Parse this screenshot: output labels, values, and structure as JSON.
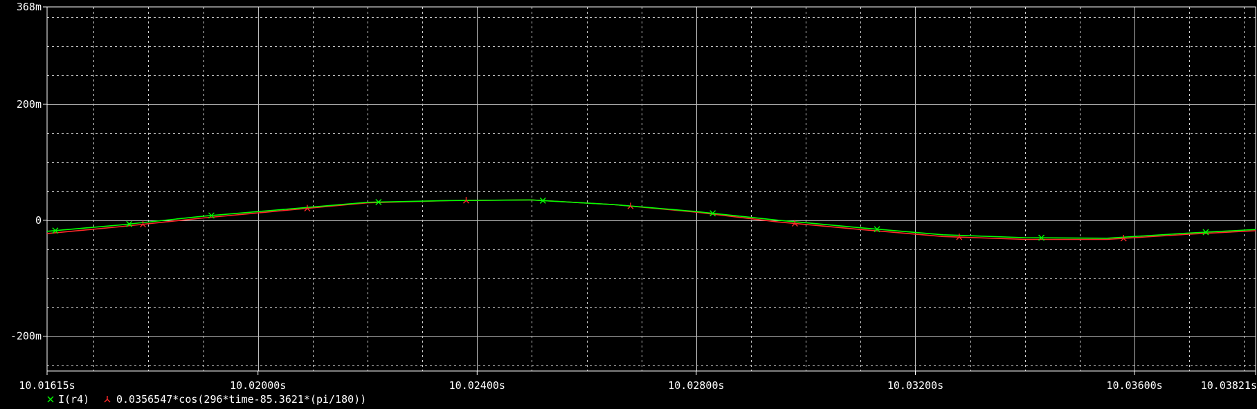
{
  "chart_data": {
    "type": "line",
    "xlabel": "",
    "ylabel": "",
    "xlim": [
      10.01615,
      10.03821
    ],
    "ylim": [
      -0.26,
      0.368
    ],
    "grid": true,
    "background": "#000000",
    "x_ticks": [
      {
        "value": 10.01615,
        "label": "10.01615s"
      },
      {
        "value": 10.02,
        "label": "10.02000s"
      },
      {
        "value": 10.024,
        "label": "10.02400s"
      },
      {
        "value": 10.028,
        "label": "10.02800s"
      },
      {
        "value": 10.032,
        "label": "10.03200s"
      },
      {
        "value": 10.036,
        "label": "10.03600s"
      },
      {
        "value": 10.03821,
        "label": "10.03821s"
      }
    ],
    "y_ticks": [
      {
        "value": 0.368,
        "label": "368m"
      },
      {
        "value": 0.2,
        "label": "200m"
      },
      {
        "value": 0,
        "label": "0"
      },
      {
        "value": -0.2,
        "label": "-200m"
      }
    ],
    "series": [
      {
        "name": "I(r4)",
        "color": "#00ff00",
        "marker": "x",
        "x": [
          10.01615,
          10.0175,
          10.019,
          10.0205,
          10.022,
          10.0235,
          10.025,
          10.0265,
          10.028,
          10.0295,
          10.031,
          10.0325,
          10.034,
          10.0355,
          10.037,
          10.03821
        ],
        "y": [
          -0.019,
          -0.008,
          0.007,
          0.019,
          0.031,
          0.034,
          0.035,
          0.027,
          0.015,
          0.0,
          -0.013,
          -0.025,
          -0.03,
          -0.031,
          -0.022,
          -0.016
        ]
      },
      {
        "name": "0.0356547*cos(296*time-85.3621*(pi/180))",
        "color": "#ff2a2a",
        "marker": "y",
        "x": [
          10.01615,
          10.0175,
          10.019,
          10.0205,
          10.022,
          10.0235,
          10.025,
          10.0265,
          10.028,
          10.0295,
          10.031,
          10.0325,
          10.034,
          10.0355,
          10.037,
          10.03821
        ],
        "y": [
          -0.023,
          -0.011,
          0.004,
          0.017,
          0.03,
          0.034,
          0.035,
          0.027,
          0.014,
          -0.003,
          -0.016,
          -0.028,
          -0.033,
          -0.033,
          -0.024,
          -0.018
        ]
      }
    ]
  }
}
